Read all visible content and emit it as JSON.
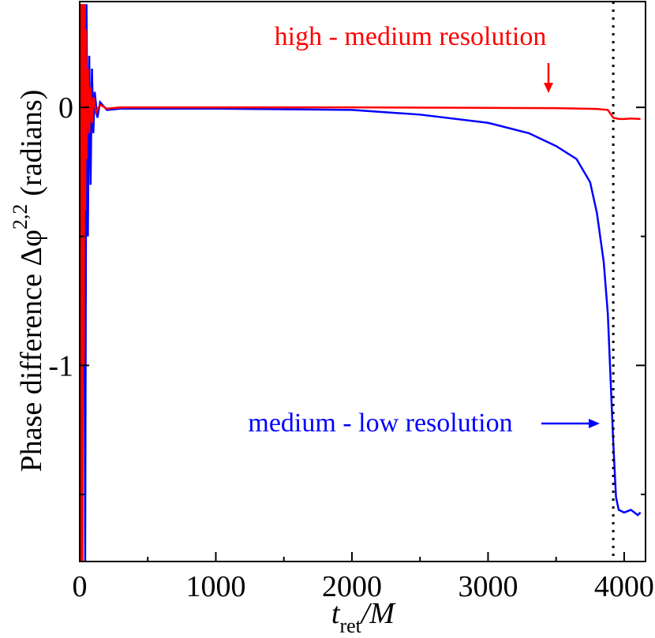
{
  "chart_data": {
    "type": "line",
    "ylabel": {
      "main": "Phase difference Δφ",
      "sup": "2,2",
      "rest": "(radians)"
    },
    "xlabel": {
      "var": "t",
      "sub": "ret",
      "unit": "/M"
    },
    "xlim": [
      0,
      4157
    ],
    "ylim": [
      -1.76,
      0.41
    ],
    "xticks": [
      0,
      1000,
      2000,
      3000,
      4000
    ],
    "xminor": [
      500,
      1500,
      2500,
      3500
    ],
    "yticks": [
      -1,
      0
    ],
    "yminor": [
      -1.5,
      -0.5
    ],
    "vline": 3920,
    "series": [
      {
        "name": "medium - low resolution",
        "color": "#0000ff",
        "x": [
          0,
          10,
          20,
          30,
          40,
          50,
          60,
          70,
          80,
          90,
          100,
          110,
          130,
          150,
          200,
          300,
          500,
          1000,
          2000,
          2500,
          3000,
          3300,
          3500,
          3650,
          3750,
          3800,
          3850,
          3880,
          3900,
          3920,
          3940,
          3960,
          4000,
          4050,
          4100,
          4120
        ],
        "values": [
          0,
          0.4,
          -0.8,
          0.4,
          -1.76,
          0.4,
          -0.5,
          0.2,
          -0.3,
          0.15,
          -0.1,
          0.06,
          -0.04,
          0.02,
          -0.01,
          -0.005,
          -0.005,
          -0.005,
          -0.01,
          -0.028,
          -0.06,
          -0.1,
          -0.15,
          -0.2,
          -0.29,
          -0.41,
          -0.6,
          -0.8,
          -1.05,
          -1.3,
          -1.51,
          -1.56,
          -1.57,
          -1.56,
          -1.58,
          -1.57
        ]
      },
      {
        "name": "high - medium resolution",
        "color": "#ff0000",
        "x": [
          0,
          5,
          10,
          15,
          20,
          25,
          30,
          35,
          40,
          45,
          50,
          60,
          70,
          80,
          90,
          100,
          120,
          150,
          200,
          300,
          1000,
          2000,
          3000,
          3500,
          3800,
          3880,
          3920,
          3960,
          4000,
          4050,
          4120
        ],
        "values": [
          0,
          0.4,
          -1.76,
          0.4,
          -1.76,
          0.4,
          -1.0,
          0.4,
          -0.4,
          0.3,
          -0.2,
          0.15,
          -0.1,
          0.08,
          -0.06,
          0.04,
          -0.02,
          0.01,
          -0.005,
          0,
          0,
          0,
          -0.002,
          -0.003,
          -0.006,
          -0.01,
          -0.04,
          -0.045,
          -0.045,
          -0.043,
          -0.045
        ]
      }
    ]
  }
}
